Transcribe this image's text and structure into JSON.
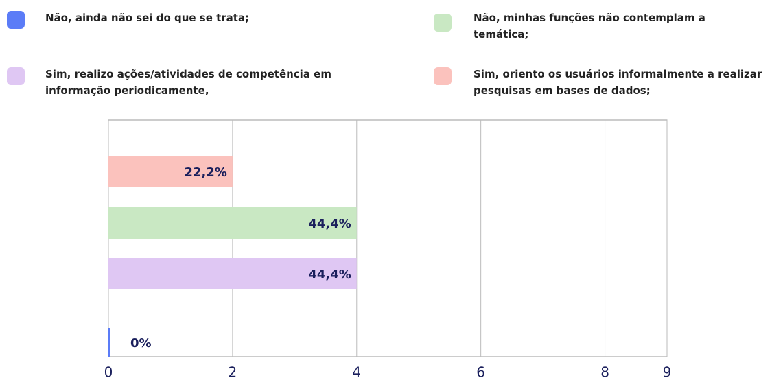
{
  "chart_data": {
    "type": "barh",
    "categories": [
      "Sim, oriento os usuários informalmente a realizar pesquisas em bases de dados;",
      "Não, minhas funções não contemplam a temática;",
      "Sim, realizo ações/atividades de competência em informação periodicamente,",
      "Não, ainda não sei do que se trata;"
    ],
    "values": [
      2,
      4,
      4,
      0
    ],
    "value_labels": [
      "22,2%",
      "44,4%",
      "44,4%",
      "0%"
    ],
    "colors": [
      "#fbc2bd",
      "#c9e8c3",
      "#dfc7f3",
      "#5b7cf7"
    ],
    "xlim": [
      0,
      9
    ],
    "xticks": [
      0,
      2,
      4,
      6,
      8,
      9
    ],
    "grid": true
  }
}
